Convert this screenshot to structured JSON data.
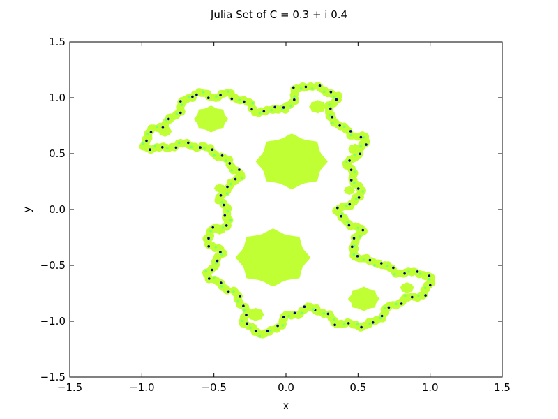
{
  "chart_data": {
    "type": "scatter",
    "title": "Julia Set of C = 0.3 + i 0.4",
    "xlabel": "x",
    "ylabel": "y",
    "xlim": [
      -1.5,
      1.5
    ],
    "ylim": [
      -1.5,
      1.5
    ],
    "x_ticks": [
      -1.5,
      -1.0,
      -0.5,
      0.0,
      0.5,
      1.0,
      1.5
    ],
    "x_tick_labels": [
      "−1.5",
      "−1.0",
      "−0.5",
      "0.0",
      "0.5",
      "1.0",
      "1.5"
    ],
    "y_ticks": [
      -1.5,
      -1.0,
      -0.5,
      0.0,
      0.5,
      1.0,
      1.5
    ],
    "y_tick_labels": [
      "−1.5",
      "−1.0",
      "−0.5",
      "0.0",
      "0.5",
      "1.0",
      "1.5"
    ],
    "grid": false,
    "legend": "none",
    "fill_color": "#bfff33",
    "edge_colors": [
      "#00008f",
      "#0050ff",
      "#00d4ff",
      "#7aff7a",
      "#ff8a00",
      "#b00000"
    ],
    "boundary_outline": [
      [
        -0.62,
        1.04
      ],
      [
        -0.5,
        1.01
      ],
      [
        -0.4,
        1.03
      ],
      [
        -0.32,
        0.99
      ],
      [
        -0.26,
        0.94
      ],
      [
        -0.2,
        0.88
      ],
      [
        -0.13,
        0.87
      ],
      [
        -0.07,
        0.92
      ],
      [
        0.0,
        0.89
      ],
      [
        0.04,
        0.97
      ],
      [
        0.07,
        1.06
      ],
      [
        0.12,
        1.11
      ],
      [
        0.18,
        1.1
      ],
      [
        0.25,
        1.07
      ],
      [
        0.31,
        1.05
      ],
      [
        0.35,
        1.0
      ],
      [
        0.31,
        0.92
      ],
      [
        0.29,
        0.83
      ],
      [
        0.35,
        0.79
      ],
      [
        0.41,
        0.71
      ],
      [
        0.47,
        0.67
      ],
      [
        0.53,
        0.66
      ],
      [
        0.55,
        0.59
      ],
      [
        0.52,
        0.53
      ],
      [
        0.47,
        0.48
      ],
      [
        0.43,
        0.4
      ],
      [
        0.46,
        0.3
      ],
      [
        0.5,
        0.2
      ],
      [
        0.52,
        0.11
      ],
      [
        0.44,
        0.05
      ],
      [
        0.37,
        0.0
      ],
      [
        0.38,
        -0.08
      ],
      [
        0.46,
        -0.13
      ],
      [
        0.52,
        -0.18
      ],
      [
        0.49,
        -0.28
      ],
      [
        0.45,
        -0.35
      ],
      [
        0.5,
        -0.43
      ],
      [
        0.58,
        -0.47
      ],
      [
        0.64,
        -0.47
      ],
      [
        0.7,
        -0.52
      ],
      [
        0.78,
        -0.56
      ],
      [
        0.86,
        -0.57
      ],
      [
        0.93,
        -0.56
      ],
      [
        0.99,
        -0.59
      ],
      [
        1.0,
        -0.67
      ],
      [
        0.97,
        -0.74
      ],
      [
        0.9,
        -0.78
      ],
      [
        0.81,
        -0.81
      ],
      [
        0.74,
        -0.85
      ],
      [
        0.67,
        -0.93
      ],
      [
        0.63,
        -1.0
      ],
      [
        0.57,
        -1.03
      ],
      [
        0.5,
        -1.04
      ],
      [
        0.42,
        -1.03
      ],
      [
        0.35,
        -1.01
      ],
      [
        0.28,
        -0.95
      ],
      [
        0.21,
        -0.88
      ],
      [
        0.14,
        -0.89
      ],
      [
        0.07,
        -0.93
      ],
      [
        0.0,
        -0.96
      ],
      [
        -0.04,
        -1.02
      ],
      [
        -0.09,
        -1.09
      ],
      [
        -0.14,
        -1.11
      ],
      [
        -0.23,
        -1.08
      ],
      [
        -0.29,
        -1.03
      ],
      [
        -0.28,
        -0.93
      ],
      [
        -0.31,
        -0.83
      ],
      [
        -0.36,
        -0.75
      ],
      [
        -0.43,
        -0.68
      ],
      [
        -0.52,
        -0.63
      ],
      [
        -0.54,
        -0.55
      ],
      [
        -0.48,
        -0.47
      ],
      [
        -0.44,
        -0.4
      ],
      [
        -0.5,
        -0.33
      ],
      [
        -0.56,
        -0.26
      ],
      [
        -0.52,
        -0.19
      ],
      [
        -0.44,
        -0.16
      ],
      [
        -0.39,
        -0.09
      ],
      [
        -0.42,
        0.0
      ],
      [
        -0.45,
        0.1
      ],
      [
        -0.42,
        0.18
      ],
      [
        -0.35,
        0.24
      ],
      [
        -0.32,
        0.32
      ],
      [
        -0.37,
        0.39
      ],
      [
        -0.44,
        0.46
      ],
      [
        -0.51,
        0.52
      ],
      [
        -0.59,
        0.56
      ],
      [
        -0.67,
        0.58
      ],
      [
        -0.75,
        0.58
      ],
      [
        -0.83,
        0.56
      ],
      [
        -0.9,
        0.54
      ],
      [
        -0.97,
        0.56
      ],
      [
        -0.98,
        0.63
      ],
      [
        -0.93,
        0.7
      ],
      [
        -0.86,
        0.76
      ],
      [
        -0.8,
        0.8
      ],
      [
        -0.76,
        0.86
      ],
      [
        -0.72,
        0.94
      ],
      [
        -0.68,
        1.01
      ]
    ],
    "filled_blobs": [
      {
        "cx": 0.04,
        "cy": 0.43,
        "r": 0.25,
        "lobes": 8
      },
      {
        "cx": -0.09,
        "cy": -0.43,
        "r": 0.26,
        "lobes": 8
      },
      {
        "cx": -0.52,
        "cy": 0.81,
        "r": 0.12,
        "lobes": 8
      },
      {
        "cx": 0.54,
        "cy": -0.8,
        "r": 0.11,
        "lobes": 8
      },
      {
        "cx": 0.22,
        "cy": 0.92,
        "r": 0.06,
        "lobes": 8
      },
      {
        "cx": -0.84,
        "cy": 0.7,
        "r": 0.05,
        "lobes": 8
      },
      {
        "cx": -0.21,
        "cy": -0.94,
        "r": 0.06,
        "lobes": 8
      },
      {
        "cx": 0.84,
        "cy": -0.7,
        "r": 0.05,
        "lobes": 8
      },
      {
        "cx": 0.48,
        "cy": 0.54,
        "r": 0.05,
        "lobes": 8
      },
      {
        "cx": -0.46,
        "cy": -0.18,
        "r": 0.045,
        "lobes": 8
      },
      {
        "cx": 0.44,
        "cy": 0.17,
        "r": 0.04,
        "lobes": 8
      },
      {
        "cx": -0.46,
        "cy": 0.19,
        "r": 0.04,
        "lobes": 8
      }
    ]
  }
}
